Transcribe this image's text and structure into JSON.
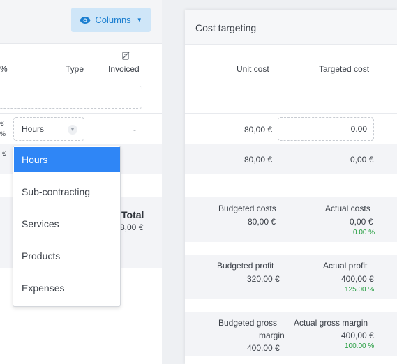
{
  "toolbar": {
    "columns_label": "Columns"
  },
  "columns": {
    "pct_fragment": "%",
    "type": "Type",
    "invoiced": "Invoiced"
  },
  "rows": [
    {
      "left_fragment_top": "€",
      "left_fragment_bottom": "%",
      "type": "Hours",
      "invoiced": "-"
    },
    {
      "left_fragment": "€"
    }
  ],
  "totals": {
    "label": "Total",
    "value_fragment": "8,00 €"
  },
  "dropdown": {
    "options": [
      "Hours",
      "Sub-contracting",
      "Services",
      "Products",
      "Expenses"
    ],
    "selected": "Hours"
  },
  "cost_targeting": {
    "title": "Cost targeting",
    "headers": {
      "unit_cost": "Unit cost",
      "targeted_cost": "Targeted cost"
    },
    "rows": [
      {
        "unit_cost": "80,00 €",
        "targeted_cost": "0.00"
      },
      {
        "unit_cost": "80,00 €",
        "targeted_cost": "0,00 €"
      }
    ],
    "summary": {
      "budgeted_costs_label": "Budgeted costs",
      "budgeted_costs_value": "80,00 €",
      "actual_costs_label": "Actual costs",
      "actual_costs_value": "0,00 €",
      "actual_costs_pct": "0.00 %",
      "budgeted_profit_label": "Budgeted profit",
      "budgeted_profit_value": "320,00 €",
      "actual_profit_label": "Actual profit",
      "actual_profit_value": "400,00 €",
      "actual_profit_pct": "125.00 %",
      "budgeted_gross_margin_label_1": "Budgeted gross",
      "budgeted_gross_margin_label_2": "margin",
      "budgeted_gross_margin_value": "400,00 €",
      "actual_gross_margin_label": "Actual gross margin",
      "actual_gross_margin_value": "400,00 €",
      "actual_gross_margin_pct": "100.00 %"
    }
  },
  "colors": {
    "accent": "#2f86f6",
    "button_bg": "#cfe6f8",
    "positive": "#1e9b3a"
  }
}
